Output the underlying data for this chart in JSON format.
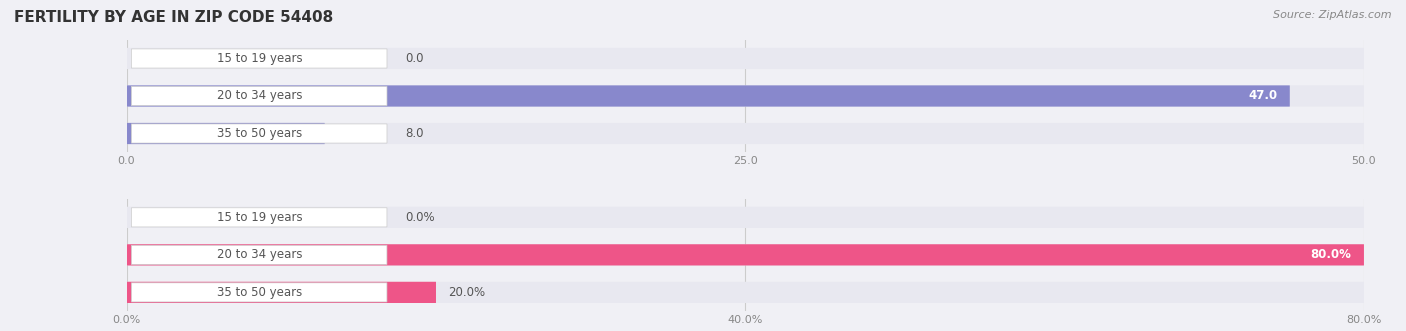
{
  "title": "FERTILITY BY AGE IN ZIP CODE 54408",
  "source": "Source: ZipAtlas.com",
  "label_color": "#555555",
  "label_box_color": "#ffffff",
  "background_color": "#f0f0f5",
  "bar_bg_color": "#e8e8f0",
  "bar_height": 0.55,
  "fig_width": 14.06,
  "fig_height": 3.31,
  "title_fontsize": 11,
  "label_fontsize": 8.5,
  "value_fontsize": 8.5,
  "tick_fontsize": 8,
  "source_fontsize": 8,
  "top_chart": {
    "categories": [
      "15 to 19 years",
      "20 to 34 years",
      "35 to 50 years"
    ],
    "values": [
      0.0,
      47.0,
      8.0
    ],
    "xlim": [
      0,
      50
    ],
    "xticks": [
      0.0,
      25.0,
      50.0
    ]
  },
  "bottom_chart": {
    "categories": [
      "15 to 19 years",
      "20 to 34 years",
      "35 to 50 years"
    ],
    "values": [
      0.0,
      80.0,
      20.0
    ],
    "xlim": [
      0,
      80
    ],
    "xticks": [
      0.0,
      40.0,
      80.0
    ]
  },
  "top_bar_color": "#8888cc",
  "bottom_bar_color": "#ee5588"
}
